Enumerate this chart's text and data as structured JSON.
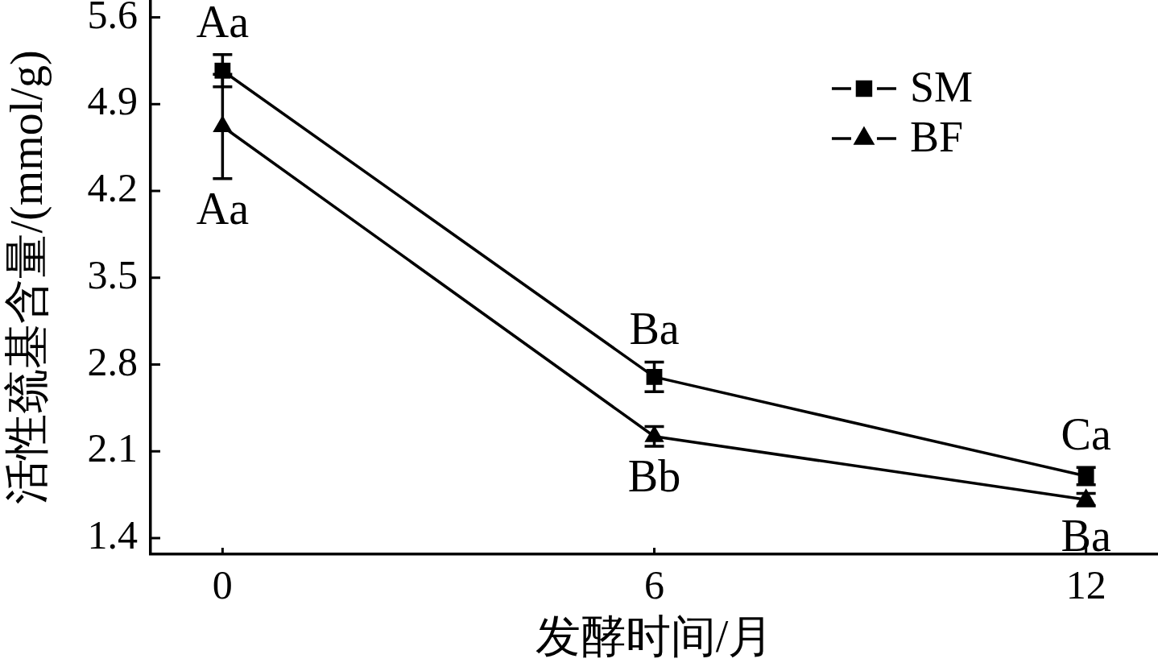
{
  "chart_data": {
    "type": "line",
    "xlabel": "发酵时间/月",
    "ylabel": "活性巯基含量/(mmol/g)",
    "x": [
      0,
      6,
      12
    ],
    "series": [
      {
        "name": "SM",
        "color": "#000000",
        "marker": "square",
        "values": [
          5.17,
          2.7,
          1.9
        ],
        "errors": [
          0.13,
          0.12,
          0.07
        ]
      },
      {
        "name": "BF",
        "color": "#000000",
        "marker": "triangle",
        "values": [
          4.72,
          2.22,
          1.71
        ],
        "errors": [
          0.42,
          0.08,
          0.05
        ]
      }
    ],
    "xlim": [
      -1,
      13
    ],
    "xticks": [
      0,
      6,
      12
    ],
    "ylim": [
      1.27,
      5.74
    ],
    "yticks": [
      1.4,
      2.1,
      2.8,
      3.5,
      4.2,
      4.9,
      5.6
    ],
    "legend": "top right",
    "line_style": "solid",
    "annotations": [
      {
        "text": "Aa",
        "x": 0,
        "y": 5.17
      },
      {
        "text": "Aa",
        "x": 0,
        "y": 4.72
      },
      {
        "text": "Ba",
        "x": 6,
        "y": 2.7
      },
      {
        "text": "Bb",
        "x": 6,
        "y": 2.22
      },
      {
        "text": "Ca",
        "x": 12,
        "y": 1.9
      },
      {
        "text": "Ba",
        "x": 12,
        "y": 1.71
      }
    ]
  }
}
